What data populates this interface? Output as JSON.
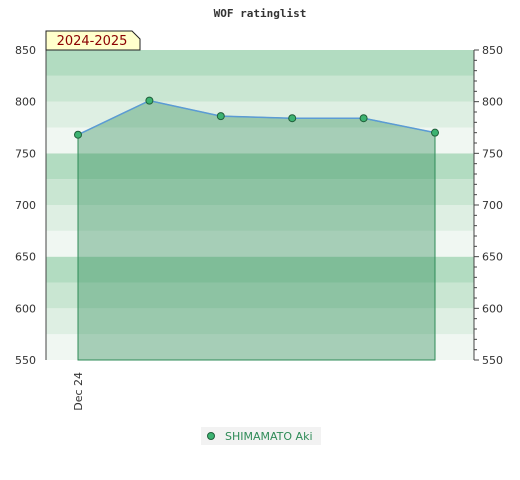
{
  "chart_data": {
    "type": "area",
    "title": "WOF ratinglist",
    "season_badge": "2024-2025",
    "x": [
      "Dec 24",
      "",
      "",
      "",
      "",
      ""
    ],
    "xlabel": "",
    "ylabel": "",
    "ylim": [
      550,
      850
    ],
    "yticks": [
      550,
      600,
      650,
      700,
      750,
      800,
      850
    ],
    "grid": true,
    "legend": "bottom-center",
    "series": [
      {
        "name": "SHIMAMATO Aki",
        "values": [
          768,
          801,
          786,
          784,
          784,
          770
        ],
        "color": "#5b9bd5",
        "fill": "#2e8b57",
        "marker": "#3cb371"
      }
    ]
  }
}
